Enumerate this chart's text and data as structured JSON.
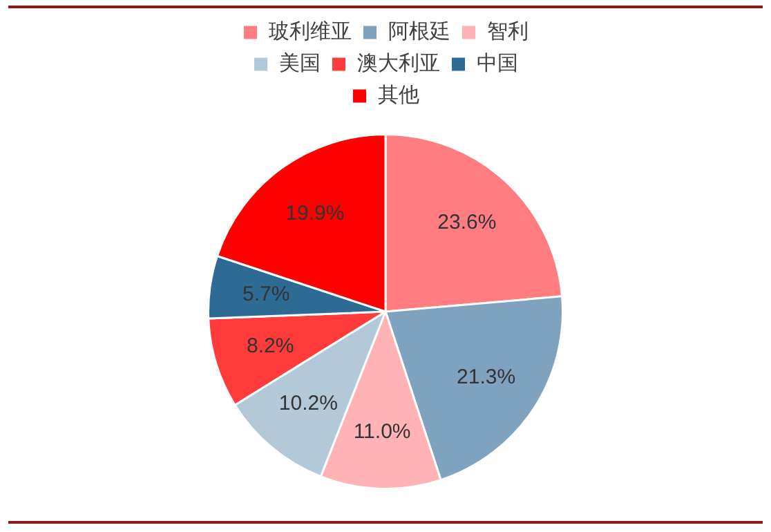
{
  "chart_data": {
    "type": "pie",
    "categories": [
      "玻利维亚",
      "阿根廷",
      "智利",
      "美国",
      "澳大利亚",
      "中国",
      "其他"
    ],
    "values": [
      23.6,
      21.3,
      11.0,
      10.2,
      8.2,
      5.7,
      19.9
    ],
    "value_labels": [
      "23.6%",
      "21.3%",
      "11.0%",
      "10.2%",
      "8.2%",
      "5.7%",
      "19.9%"
    ],
    "colors": [
      "#ff7c80",
      "#7fa3bf",
      "#ffb3b5",
      "#b4c9d8",
      "#ff3b3b",
      "#2e6b94",
      "#ff0000"
    ],
    "legend": "top"
  }
}
